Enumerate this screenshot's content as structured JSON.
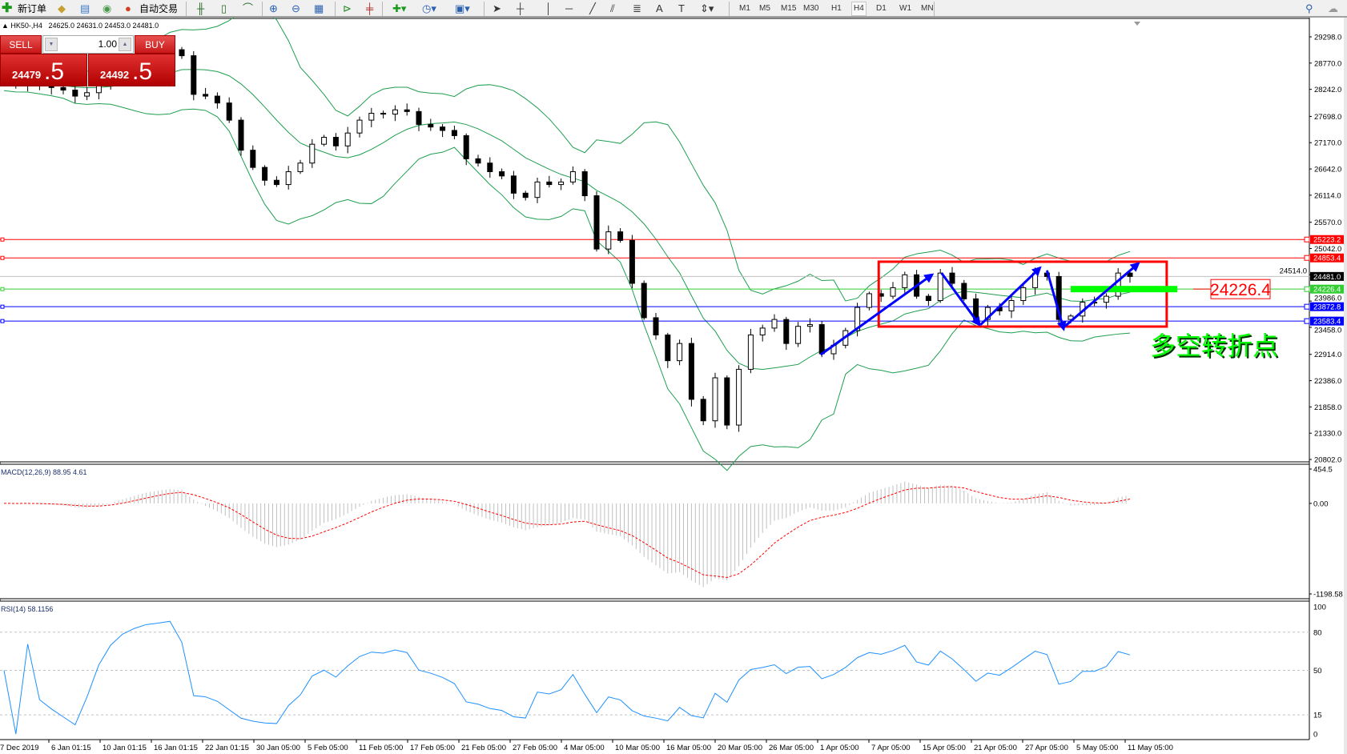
{
  "toolbar": {
    "new_order": "新订单",
    "auto_trading": "自动交易",
    "timeframes": [
      "M1",
      "M5",
      "M15",
      "M30",
      "H1",
      "H4",
      "D1",
      "W1",
      "MN"
    ],
    "active_timeframe": "H4",
    "icons": [
      "new-order-icon",
      "market-watch-icon",
      "data-window-icon",
      "signals-icon",
      "auto-trading-icon",
      "bar-chart-icon",
      "candlestick-icon",
      "line-chart-icon",
      "zoom-in-icon",
      "zoom-out-icon",
      "tile-windows-icon",
      "auto-scroll-icon",
      "chart-shift-icon",
      "indicators-icon",
      "periods-icon",
      "templates-icon",
      "cursor-icon",
      "crosshair-icon",
      "vertical-line-icon",
      "horizontal-line-icon",
      "trendline-icon",
      "equidistant-channel-icon",
      "fibonacci-icon",
      "text-icon",
      "text-label-icon",
      "arrows-icon",
      "search-icon",
      "community-icon"
    ]
  },
  "chart": {
    "symbol": "HK50-,H4",
    "ohlc": "24625.0 24631.0 24453.0 24481.0"
  },
  "trade_panel": {
    "sell_label": "SELL",
    "buy_label": "BUY",
    "volume": "1.00",
    "sell_price_main": "24479",
    "sell_price_frac": ".5",
    "buy_price_main": "24492",
    "buy_price_frac": ".5"
  },
  "annotations": {
    "price_box": "24226.4",
    "note": "多空转折点",
    "note_color": "#00ff00",
    "rectangle_color": "#ff0000",
    "arrow_color": "#0000ff"
  },
  "chart_data": {
    "type": "candlestick",
    "price_axis": {
      "range": [
        20802.0,
        29298.0
      ],
      "ticks": [
        "29298.0",
        "28770.0",
        "28242.0",
        "27698.0",
        "27170.0",
        "26642.0",
        "26114.0",
        "25570.0",
        "25042.0",
        "24514.0",
        "23986.0",
        "23458.0",
        "22914.0",
        "22386.0",
        "21858.0",
        "21330.0",
        "20802.0"
      ]
    },
    "time_labels": [
      "7 Dec 2019",
      "6 Jan 01:15",
      "10 Jan 01:15",
      "16 Jan 01:15",
      "22 Jan 01:15",
      "30 Jan 05:00",
      "5 Feb 05:00",
      "11 Feb 05:00",
      "17 Feb 05:00",
      "21 Feb 05:00",
      "27 Feb 05:00",
      "4 Mar 05:00",
      "10 Mar 05:00",
      "16 Mar 05:00",
      "20 Mar 05:00",
      "26 Mar 05:00",
      "1 Apr 05:00",
      "7 Apr 05:00",
      "15 Apr 05:00",
      "21 Apr 05:00",
      "27 Apr 05:00",
      "5 May 05:00",
      "11 May 05:00"
    ],
    "closes": [
      28365,
      28348,
      28383,
      28314,
      28279,
      28227,
      28106,
      28175,
      28314,
      28486,
      28659,
      28797,
      28918,
      28970,
      29039,
      28918,
      28141,
      28106,
      27968,
      27623,
      27018,
      26673,
      26414,
      26328,
      26587,
      26760,
      27139,
      27278,
      27105,
      27364,
      27623,
      27761,
      27744,
      27830,
      27796,
      27537,
      27485,
      27416,
      27312,
      26846,
      26760,
      26587,
      26501,
      26155,
      26069,
      26380,
      26328,
      26380,
      26587,
      26103,
      25032,
      25378,
      25205,
      24342,
      23651,
      23305,
      22787,
      23133,
      22011,
      21579,
      22443,
      21493,
      22614,
      23305,
      23443,
      23616,
      23133,
      23478,
      23513,
      22926,
      23098,
      23392,
      23858,
      24134,
      24083,
      24255,
      24514,
      24083,
      23996,
      24549,
      24342,
      24031,
      23616,
      23858,
      23789,
      23996,
      24255,
      24549,
      24480,
      23616,
      23685,
      23962,
      23962,
      24083,
      24549,
      24481
    ],
    "bands_color": "#1f9e4f",
    "horizontal_lines": [
      {
        "price": 25223.2,
        "label": "25223.2",
        "color": "#ff0000"
      },
      {
        "price": 24853.4,
        "label": "24853.4",
        "color": "#ff0000"
      },
      {
        "price": 24481.0,
        "label": "24481.0",
        "color": "#c0c0c0",
        "tag": "#000000"
      },
      {
        "price": 24226.4,
        "label": "24226.4",
        "color": "#32cd32"
      },
      {
        "price": 23872.8,
        "label": "23872.8",
        "color": "#0000ff"
      },
      {
        "price": 23583.4,
        "label": "23583.4",
        "color": "#0000ff"
      }
    ],
    "rectangle": {
      "bar_from": 73.8,
      "bar_to": 98.1,
      "price_top": 24777,
      "price_bottom": 23473
    },
    "green_level": {
      "bar_from": 90,
      "bar_to": 99,
      "price": 24226.4
    },
    "arrows": [
      [
        [
          68.9,
          22908
        ],
        [
          78.3,
          24514
        ]
      ],
      [
        [
          79.1,
          24549
        ],
        [
          82.3,
          23512
        ]
      ],
      [
        [
          82.4,
          23512
        ],
        [
          87.4,
          24652
        ]
      ],
      [
        [
          88.0,
          24601
        ],
        [
          89.4,
          23426
        ]
      ],
      [
        [
          89.5,
          23478
        ],
        [
          95.7,
          24739
        ]
      ]
    ],
    "macd": {
      "label": "MACD(12,26,9) 88.95 4.61",
      "range": [
        -1198.58,
        454.5
      ],
      "ticks": [
        "454.5",
        "0.00",
        "-1198.58"
      ],
      "signal_color": "#ff0000",
      "histogram_color": "#c0c0c0"
    },
    "rsi": {
      "label": "RSI(14) 58.1156",
      "range": [
        0,
        100
      ],
      "levels": [
        "80",
        "50",
        "15"
      ],
      "ticks": [
        "100",
        "80",
        "50",
        "15",
        "0"
      ],
      "color": "#1e90ff"
    }
  }
}
